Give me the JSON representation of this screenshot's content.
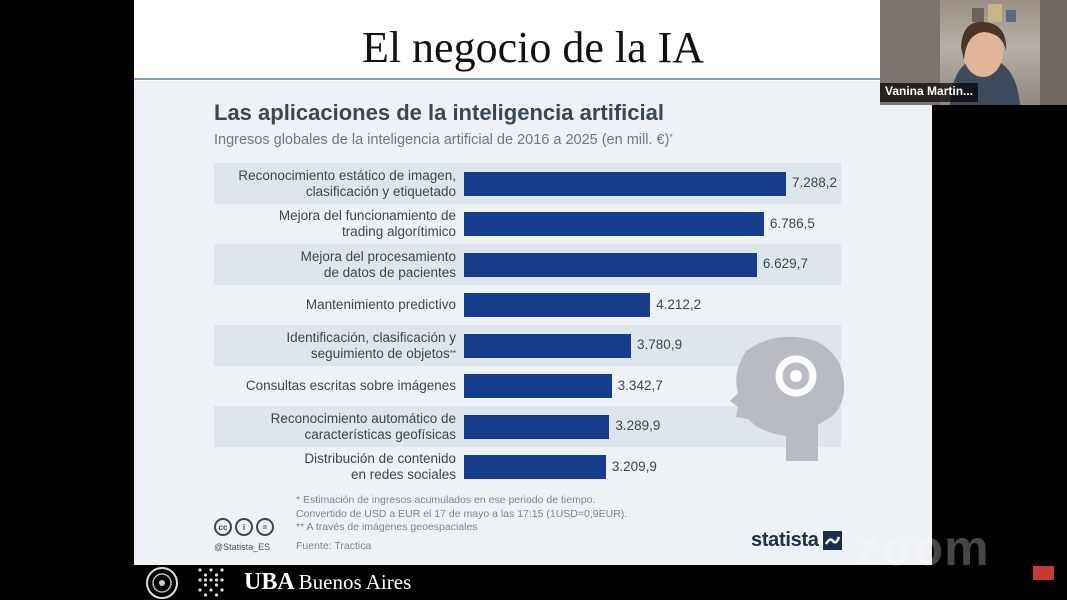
{
  "slide": {
    "title": "El negocio de la IA"
  },
  "chart_data": {
    "type": "bar",
    "orientation": "horizontal",
    "title": "Las aplicaciones de la inteligencia artificial",
    "subtitle": "Ingresos globales de la inteligencia artificial de 2016 a 2025 (en mill. €)",
    "subtitle_mark": "*",
    "xlim": [
      0,
      8000
    ],
    "grid": false,
    "categories": [
      "Reconocimiento estático de imagen,\nclasificación y etiquetado",
      "Mejora del funcionamiento de\ntrading algorítimico",
      "Mejora del procesamiento\nde datos de pacientes",
      "Mantenimiento predictivo",
      "Identificación, clasificación y\nseguimiento de objetos",
      "Consultas escritas sobre imágenes",
      "Reconocimiento automático de\ncaracterísticas geofísicas",
      "Distribución de contenido\nen redes sociales"
    ],
    "category_marks": [
      "",
      "",
      "",
      "",
      "**",
      "",
      "",
      ""
    ],
    "values": [
      7288.2,
      6786.5,
      6629.7,
      4212.2,
      3780.9,
      3342.7,
      3289.9,
      3209.9
    ],
    "value_labels": [
      "7.288,2",
      "6.786,5",
      "6.629,7",
      "4.212,2",
      "3.780,9",
      "3.342,7",
      "3.289,9",
      "3.209,9"
    ],
    "bar_color": "#163d8c",
    "band_color": "#dfe5ec"
  },
  "infographic": {
    "footnote_1": "*  Estimación de ingresos acumulados en ese periodo de tiempo.\n    Convertido de USD a EUR el 17 de mayo a las 17:15 (1USD=0,9EUR).",
    "footnote_2": "** A través de imágenes geoespaciales",
    "source": "Fuente: Tractica",
    "handle": "@Statista_ES",
    "license_icons": [
      "cc",
      "i",
      "="
    ],
    "brand": "statista"
  },
  "webcam": {
    "participant_name": "Vanina Martin..."
  },
  "watermark": {
    "text": "zoom"
  },
  "footer": {
    "brand": "UBA",
    "city": "Buenos Aires"
  }
}
